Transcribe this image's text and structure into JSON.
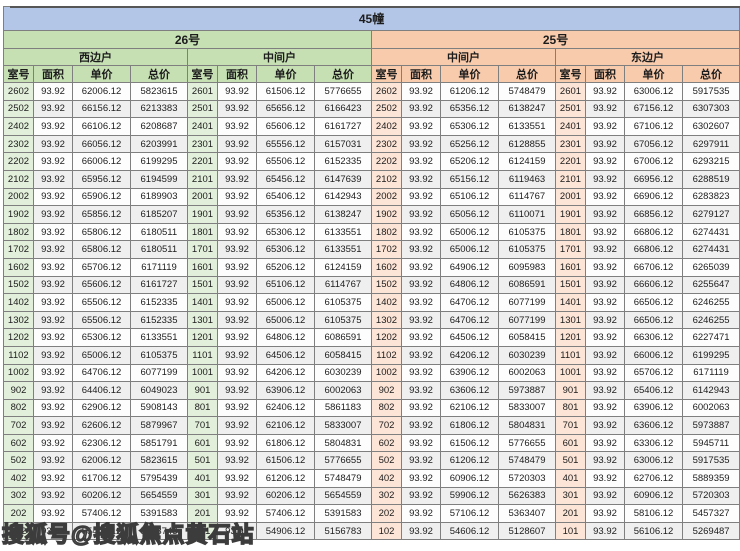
{
  "title": "45幢",
  "watermark": "搜狐号@搜狐焦点黄石站",
  "colors": {
    "title_bar": "#b4c6e7",
    "building_26_header": "#c6e0b4",
    "building_25_header": "#f8cbad",
    "room_col_26": "#e2efda",
    "room_col_25": "#fce4d6",
    "alt_row": "#efefef",
    "border": "#7f7f7f"
  },
  "table": {
    "buildings": [
      {
        "label": "26号"
      },
      {
        "label": "25号"
      }
    ],
    "units": [
      "西边户",
      "中间户",
      "中间户",
      "东边户"
    ],
    "column_headers": [
      "室号",
      "面积",
      "单价",
      "总价"
    ],
    "rows": [
      [
        "2602",
        "93.92",
        "62006.12",
        "5823615",
        "2601",
        "93.92",
        "61506.12",
        "5776655",
        "2602",
        "93.92",
        "61206.12",
        "5748479",
        "2601",
        "93.92",
        "63006.12",
        "5917535"
      ],
      [
        "2502",
        "93.92",
        "66156.12",
        "6213383",
        "2501",
        "93.92",
        "65656.12",
        "6166423",
        "2502",
        "93.92",
        "65356.12",
        "6138247",
        "2501",
        "93.92",
        "67156.12",
        "6307303"
      ],
      [
        "2402",
        "93.92",
        "66106.12",
        "6208687",
        "2401",
        "93.92",
        "65606.12",
        "6161727",
        "2402",
        "93.92",
        "65306.12",
        "6133551",
        "2401",
        "93.92",
        "67106.12",
        "6302607"
      ],
      [
        "2302",
        "93.92",
        "66056.12",
        "6203991",
        "2301",
        "93.92",
        "65556.12",
        "6157031",
        "2302",
        "93.92",
        "65256.12",
        "6128855",
        "2301",
        "93.92",
        "67056.12",
        "6297911"
      ],
      [
        "2202",
        "93.92",
        "66006.12",
        "6199295",
        "2201",
        "93.92",
        "65506.12",
        "6152335",
        "2202",
        "93.92",
        "65206.12",
        "6124159",
        "2201",
        "93.92",
        "67006.12",
        "6293215"
      ],
      [
        "2102",
        "93.92",
        "65956.12",
        "6194599",
        "2101",
        "93.92",
        "65456.12",
        "6147639",
        "2102",
        "93.92",
        "65156.12",
        "6119463",
        "2101",
        "93.92",
        "66956.12",
        "6288519"
      ],
      [
        "2002",
        "93.92",
        "65906.12",
        "6189903",
        "2001",
        "93.92",
        "65406.12",
        "6142943",
        "2002",
        "93.92",
        "65106.12",
        "6114767",
        "2001",
        "93.92",
        "66906.12",
        "6283823"
      ],
      [
        "1902",
        "93.92",
        "65856.12",
        "6185207",
        "1901",
        "93.92",
        "65356.12",
        "6138247",
        "1902",
        "93.92",
        "65056.12",
        "6110071",
        "1901",
        "93.92",
        "66856.12",
        "6279127"
      ],
      [
        "1802",
        "93.92",
        "65806.12",
        "6180511",
        "1801",
        "93.92",
        "65306.12",
        "6133551",
        "1802",
        "93.92",
        "65006.12",
        "6105375",
        "1801",
        "93.92",
        "66806.12",
        "6274431"
      ],
      [
        "1702",
        "93.92",
        "65806.12",
        "6180511",
        "1701",
        "93.92",
        "65306.12",
        "6133551",
        "1702",
        "93.92",
        "65006.12",
        "6105375",
        "1701",
        "93.92",
        "66806.12",
        "6274431"
      ],
      [
        "1602",
        "93.92",
        "65706.12",
        "6171119",
        "1601",
        "93.92",
        "65206.12",
        "6124159",
        "1602",
        "93.92",
        "64906.12",
        "6095983",
        "1601",
        "93.92",
        "66706.12",
        "6265039"
      ],
      [
        "1502",
        "93.92",
        "65606.12",
        "6161727",
        "1501",
        "93.92",
        "65106.12",
        "6114767",
        "1502",
        "93.92",
        "64806.12",
        "6086591",
        "1501",
        "93.92",
        "66606.12",
        "6255647"
      ],
      [
        "1402",
        "93.92",
        "65506.12",
        "6152335",
        "1401",
        "93.92",
        "65006.12",
        "6105375",
        "1402",
        "93.92",
        "64706.12",
        "6077199",
        "1401",
        "93.92",
        "66506.12",
        "6246255"
      ],
      [
        "1302",
        "93.92",
        "65506.12",
        "6152335",
        "1301",
        "93.92",
        "65006.12",
        "6105375",
        "1302",
        "93.92",
        "64706.12",
        "6077199",
        "1301",
        "93.92",
        "66506.12",
        "6246255"
      ],
      [
        "1202",
        "93.92",
        "65306.12",
        "6133551",
        "1201",
        "93.92",
        "64806.12",
        "6086591",
        "1202",
        "93.92",
        "64506.12",
        "6058415",
        "1201",
        "93.92",
        "66306.12",
        "6227471"
      ],
      [
        "1102",
        "93.92",
        "65006.12",
        "6105375",
        "1101",
        "93.92",
        "64506.12",
        "6058415",
        "1102",
        "93.92",
        "64206.12",
        "6030239",
        "1101",
        "93.92",
        "66006.12",
        "6199295"
      ],
      [
        "1002",
        "93.92",
        "64706.12",
        "6077199",
        "1001",
        "93.92",
        "64206.12",
        "6030239",
        "1002",
        "93.92",
        "63906.12",
        "6002063",
        "1001",
        "93.92",
        "65706.12",
        "6171119"
      ],
      [
        "902",
        "93.92",
        "64406.12",
        "6049023",
        "901",
        "93.92",
        "63906.12",
        "6002063",
        "902",
        "93.92",
        "63606.12",
        "5973887",
        "901",
        "93.92",
        "65406.12",
        "6142943"
      ],
      [
        "802",
        "93.92",
        "62906.12",
        "5908143",
        "801",
        "93.92",
        "62406.12",
        "5861183",
        "802",
        "93.92",
        "62106.12",
        "5833007",
        "801",
        "93.92",
        "63906.12",
        "6002063"
      ],
      [
        "702",
        "93.92",
        "62606.12",
        "5879967",
        "701",
        "93.92",
        "62106.12",
        "5833007",
        "702",
        "93.92",
        "61806.12",
        "5804831",
        "701",
        "93.92",
        "63606.12",
        "5973887"
      ],
      [
        "602",
        "93.92",
        "62306.12",
        "5851791",
        "601",
        "93.92",
        "61806.12",
        "5804831",
        "602",
        "93.92",
        "61506.12",
        "5776655",
        "601",
        "93.92",
        "63306.12",
        "5945711"
      ],
      [
        "502",
        "93.92",
        "62006.12",
        "5823615",
        "501",
        "93.92",
        "61506.12",
        "5776655",
        "502",
        "93.92",
        "61206.12",
        "5748479",
        "501",
        "93.92",
        "63006.12",
        "5917535"
      ],
      [
        "402",
        "93.92",
        "61706.12",
        "5795439",
        "401",
        "93.92",
        "61206.12",
        "5748479",
        "402",
        "93.92",
        "60906.12",
        "5720303",
        "401",
        "93.92",
        "62706.12",
        "5889359"
      ],
      [
        "302",
        "93.92",
        "60206.12",
        "5654559",
        "301",
        "93.92",
        "60206.12",
        "5654559",
        "302",
        "93.92",
        "59906.12",
        "5626383",
        "301",
        "93.92",
        "60906.12",
        "5720303"
      ],
      [
        "202",
        "93.92",
        "57406.12",
        "5391583",
        "201",
        "93.92",
        "57406.12",
        "5391583",
        "202",
        "93.92",
        "57106.12",
        "5363407",
        "201",
        "93.92",
        "58106.12",
        "5457327"
      ],
      [
        "102",
        "93.92",
        "55406.12",
        "5203743",
        "101",
        "93.92",
        "54906.12",
        "5156783",
        "102",
        "93.92",
        "54606.12",
        "5128607",
        "101",
        "93.92",
        "56106.12",
        "5269487"
      ]
    ]
  }
}
